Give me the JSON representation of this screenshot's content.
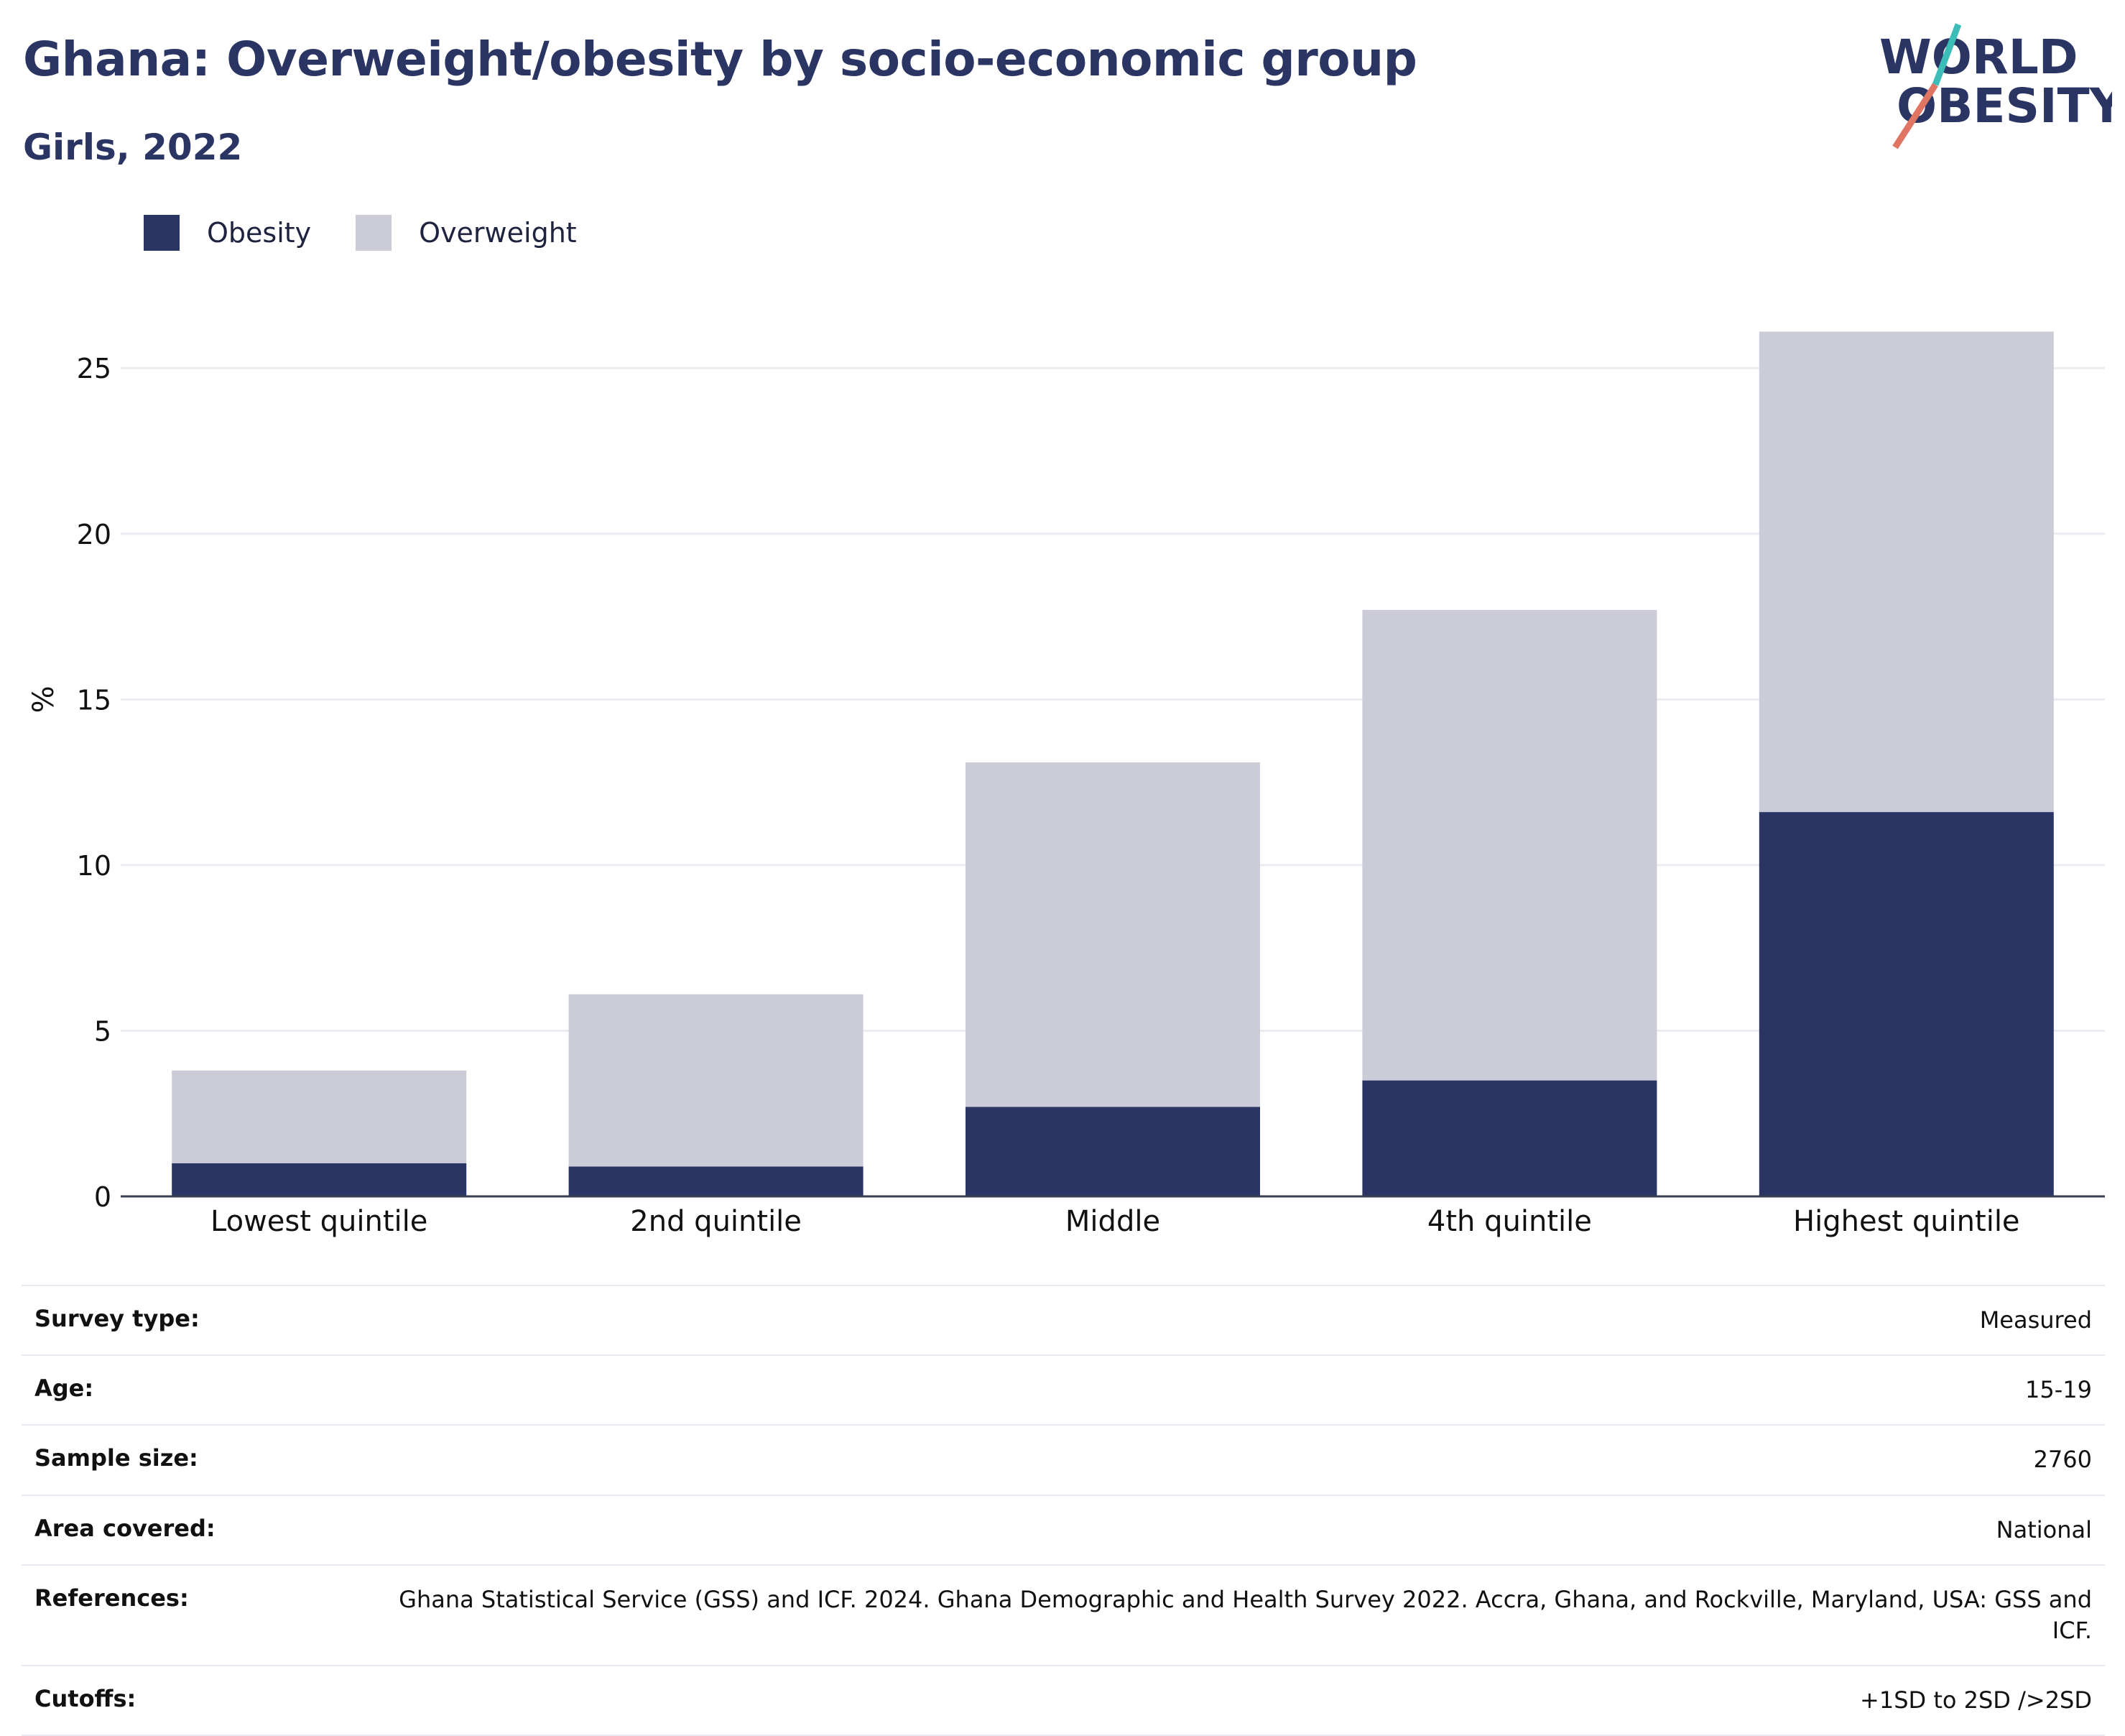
{
  "header": {
    "title": "Ghana: Overweight/obesity by socio-economic group",
    "subtitle": "Girls, 2022"
  },
  "logo": {
    "line1": "WORLD",
    "line2": "OBESITY",
    "accent_colors": [
      "#3dbdb8",
      "#e07563"
    ]
  },
  "legend": [
    {
      "label": "Obesity",
      "color": "#2a3563"
    },
    {
      "label": "Overweight",
      "color": "#cbccd8"
    }
  ],
  "chart_data": {
    "type": "bar",
    "stacked": true,
    "categories": [
      "Lowest quintile",
      "2nd quintile",
      "Middle",
      "4th quintile",
      "Highest quintile"
    ],
    "series": [
      {
        "name": "Obesity",
        "color": "#2a3563",
        "values": [
          1.0,
          0.9,
          2.7,
          3.5,
          11.6
        ]
      },
      {
        "name": "Overweight",
        "color": "#cbccd8",
        "values": [
          2.8,
          5.2,
          10.4,
          14.2,
          14.5
        ]
      }
    ],
    "ylabel": "%",
    "xlabel": "",
    "ylim": [
      0,
      27
    ],
    "yticks": [
      0,
      5,
      10,
      15,
      20,
      25
    ],
    "grid": true,
    "legend_position": "top-left"
  },
  "meta": [
    {
      "key": "Survey type:",
      "value": "Measured"
    },
    {
      "key": "Age:",
      "value": "15-19"
    },
    {
      "key": "Sample size:",
      "value": "2760"
    },
    {
      "key": "Area covered:",
      "value": "National"
    },
    {
      "key": "References:",
      "value": "Ghana Statistical Service (GSS) and ICF. 2024. Ghana Demographic and Health Survey 2022. Accra, Ghana, and Rockville, Maryland, USA: GSS and ICF."
    },
    {
      "key": "Cutoffs:",
      "value": "+1SD to 2SD />2SD"
    }
  ]
}
